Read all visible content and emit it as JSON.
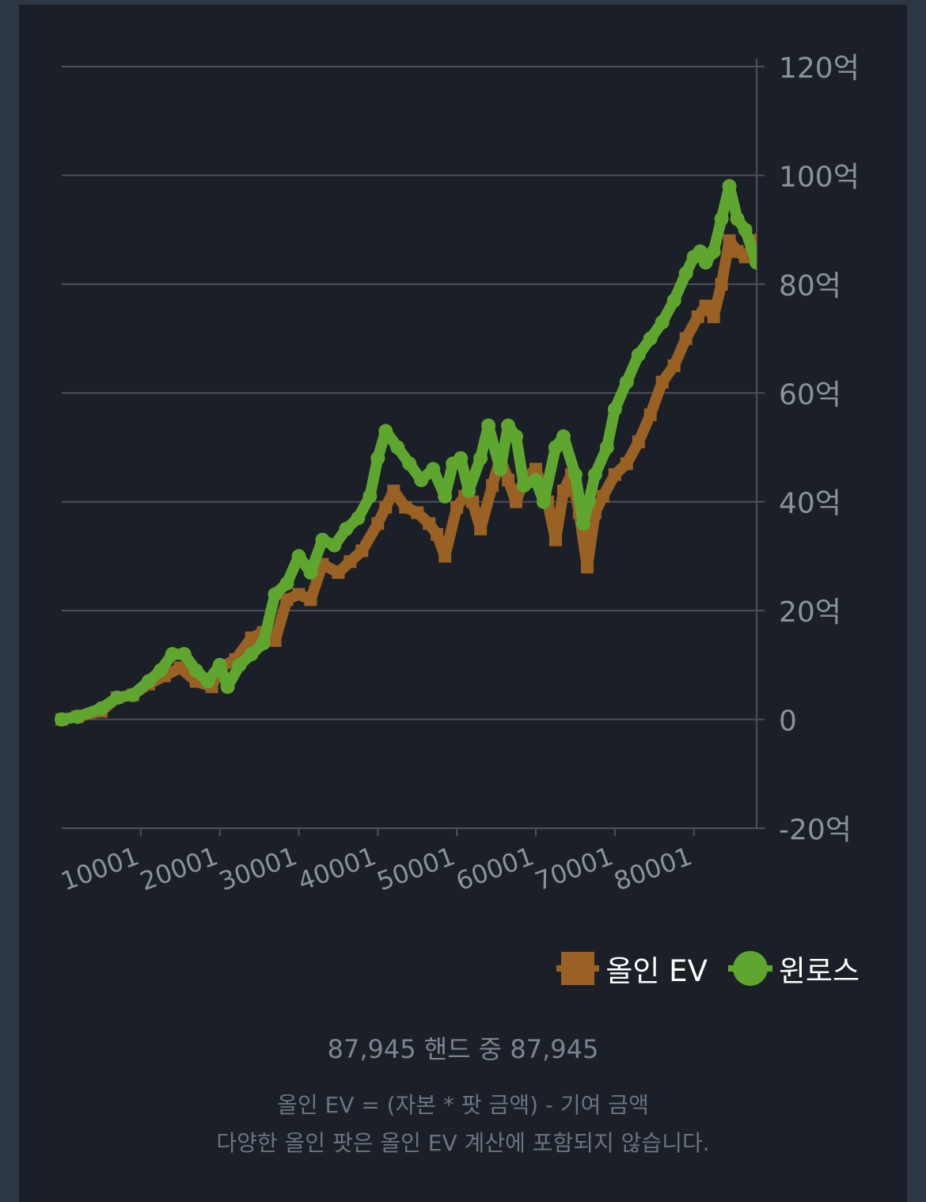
{
  "colors": {
    "background": "#1b1f27",
    "outer": "#2e3845",
    "allin_ev": "#996124",
    "winloss": "#5fa62f",
    "grid": "#4b515c",
    "tick_text": "#8a929c"
  },
  "chart_data": {
    "type": "line",
    "x_tick_labels": [
      "10001",
      "20001",
      "30001",
      "40001",
      "50001",
      "60001",
      "70001",
      "80001"
    ],
    "x_ticks": [
      10001,
      20001,
      30001,
      40001,
      50001,
      60001,
      70001,
      80001
    ],
    "xlim": [
      1,
      87945
    ],
    "y_tick_labels": [
      "120억",
      "100억",
      "80억",
      "60억",
      "40억",
      "20억",
      "0",
      "-20억"
    ],
    "y_ticks": [
      120,
      100,
      80,
      60,
      40,
      20,
      0,
      -20
    ],
    "ylim": [
      -20,
      120
    ],
    "y_unit": "억",
    "grid": true,
    "y_axis_side": "right",
    "legend_position": "bottom-right",
    "series": [
      {
        "name": "올인 EV",
        "color": "#996124",
        "marker": "square",
        "x": [
          1,
          2000,
          5000,
          7000,
          9000,
          11000,
          13000,
          15000,
          17000,
          19000,
          20000,
          22000,
          24000,
          25500,
          27000,
          28500,
          30000,
          31500,
          33000,
          35000,
          36500,
          38000,
          40000,
          41000,
          42000,
          43500,
          45000,
          46500,
          47500,
          48500,
          50000,
          51000,
          52000,
          53000,
          54500,
          55500,
          56500,
          57500,
          58500,
          60000,
          61500,
          62500,
          63500,
          64500,
          65500,
          66500,
          67500,
          68500,
          70000,
          71500,
          73000,
          74500,
          76000,
          77500,
          79000,
          80500,
          81500,
          82500,
          83500,
          84500,
          85500,
          86500,
          87945
        ],
        "values": [
          0,
          0.5,
          1.5,
          4,
          4.5,
          6.5,
          8,
          9.5,
          7,
          6,
          9.5,
          11,
          15,
          16,
          14.5,
          22,
          23,
          22,
          28.5,
          27,
          29,
          31,
          36,
          39,
          42,
          39,
          38,
          36,
          34,
          30,
          39,
          41,
          40,
          35,
          43,
          48,
          44,
          40,
          44,
          46,
          40,
          33,
          42,
          45,
          38,
          28,
          38,
          41,
          45,
          47,
          51,
          56,
          62,
          65,
          70,
          74,
          76,
          74,
          80,
          88,
          86,
          85,
          88
        ]
      },
      {
        "name": "윈로스",
        "color": "#5fa62f",
        "marker": "circle",
        "x": [
          1,
          2000,
          5000,
          7000,
          9000,
          11000,
          12500,
          14000,
          15500,
          17000,
          18500,
          20000,
          21000,
          22500,
          24000,
          25500,
          27000,
          28500,
          30000,
          31500,
          33000,
          34500,
          36000,
          37500,
          39000,
          40000,
          41000,
          42500,
          44000,
          45500,
          47000,
          48500,
          49500,
          50500,
          51500,
          53000,
          54000,
          55500,
          56500,
          57500,
          58500,
          60000,
          61000,
          62500,
          63500,
          65000,
          66000,
          66700,
          67500,
          69000,
          70000,
          71500,
          73000,
          74500,
          76000,
          77500,
          79000,
          80000,
          80800,
          81500,
          82500,
          83500,
          84500,
          85500,
          86500,
          87945
        ],
        "values": [
          0,
          0.5,
          2,
          4,
          4.5,
          7,
          9,
          12,
          12,
          9,
          7,
          10,
          6,
          10,
          12,
          14,
          23,
          25,
          30,
          27,
          33,
          32,
          35,
          37,
          41,
          48,
          53,
          50,
          47,
          44,
          46,
          41,
          47,
          48,
          42,
          48,
          54,
          46,
          54,
          52,
          43,
          44,
          40,
          50,
          52,
          45,
          36,
          40,
          45,
          50,
          57,
          62,
          67,
          70,
          73,
          77,
          82,
          85,
          86,
          84,
          86,
          92,
          98,
          92,
          90,
          84
        ]
      }
    ]
  },
  "legend": {
    "items": [
      {
        "label": "올인 EV"
      },
      {
        "label": "윈로스"
      }
    ]
  },
  "hand_count": "87,945 핸드 중 87,945",
  "footnote": {
    "line1": "올인 EV = (자본 * 팟 금액) - 기여 금액",
    "line2": "다양한 올인 팟은 올인 EV 계산에 포함되지 않습니다."
  }
}
